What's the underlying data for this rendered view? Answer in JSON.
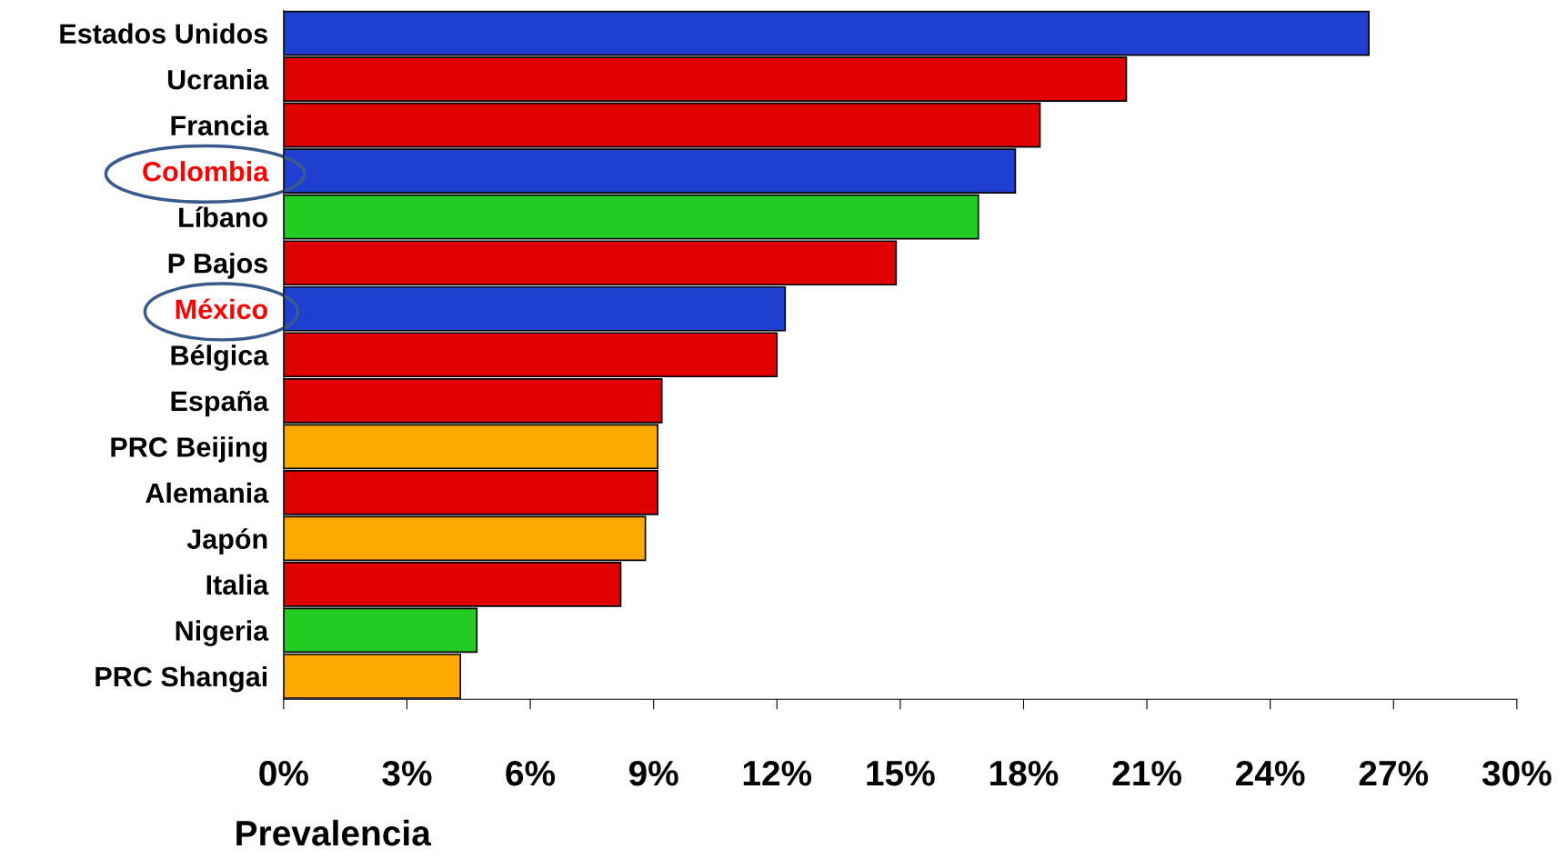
{
  "chart_data": {
    "type": "bar",
    "orientation": "horizontal",
    "xlabel": "Prevalencia",
    "categories": [
      "Estados Unidos",
      "Ucrania",
      "Francia",
      "Colombia",
      "Líbano",
      "P Bajos",
      "México",
      "Bélgica",
      "España",
      "PRC Beijing",
      "Alemania",
      "Japón",
      "Italia",
      "Nigeria",
      "PRC Shangai"
    ],
    "values": [
      26.4,
      20.5,
      18.4,
      17.8,
      16.9,
      14.9,
      12.2,
      12.0,
      9.2,
      9.1,
      9.1,
      8.8,
      8.2,
      4.7,
      4.3
    ],
    "colors": [
      "#1f3fd0",
      "#e00000",
      "#e00000",
      "#1f3fd0",
      "#22cc22",
      "#e00000",
      "#1f3fd0",
      "#e00000",
      "#e00000",
      "#ffaa00",
      "#e00000",
      "#ffaa00",
      "#e00000",
      "#22cc22",
      "#ffaa00"
    ],
    "xlim": [
      0,
      30
    ],
    "xticks": [
      {
        "value": 0,
        "label": "0%"
      },
      {
        "value": 3,
        "label": "3%"
      },
      {
        "value": 6,
        "label": "6%"
      },
      {
        "value": 9,
        "label": "9%"
      },
      {
        "value": 12,
        "label": "12%"
      },
      {
        "value": 15,
        "label": "15%"
      },
      {
        "value": 18,
        "label": "18%"
      },
      {
        "value": 21,
        "label": "21%"
      },
      {
        "value": 24,
        "label": "24%"
      },
      {
        "value": 27,
        "label": "27%"
      },
      {
        "value": 30,
        "label": "30%"
      }
    ],
    "grid": false,
    "legend": false
  }
}
